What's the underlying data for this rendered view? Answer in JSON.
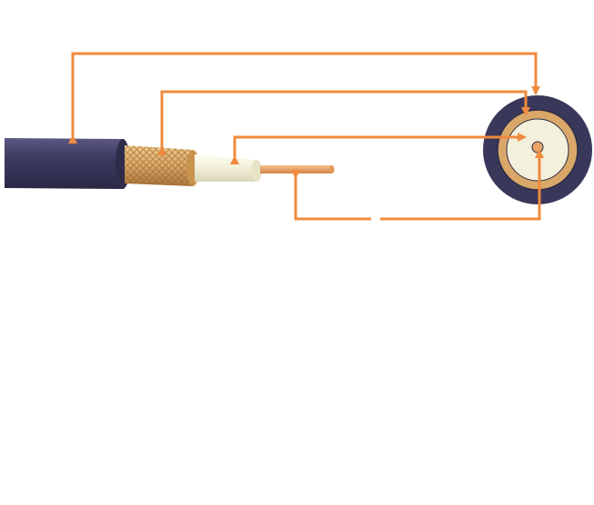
{
  "colors": {
    "background": "#ffffff",
    "arrow": "#f08a3e",
    "jacket": "#3a385a",
    "jacket_highlight": "#5b5882",
    "braid": "#d9a868",
    "braid_dark": "#b07a3c",
    "dielectric": "#f2efd8",
    "conductor": "#e8a567"
  },
  "parts": [
    {
      "id": "outer-jacket",
      "icon": "jacket-layer"
    },
    {
      "id": "braided-shield",
      "icon": "braid-layer"
    },
    {
      "id": "dielectric-insulator",
      "icon": "insulator-layer"
    },
    {
      "id": "center-conductor",
      "icon": "conductor-core"
    }
  ]
}
